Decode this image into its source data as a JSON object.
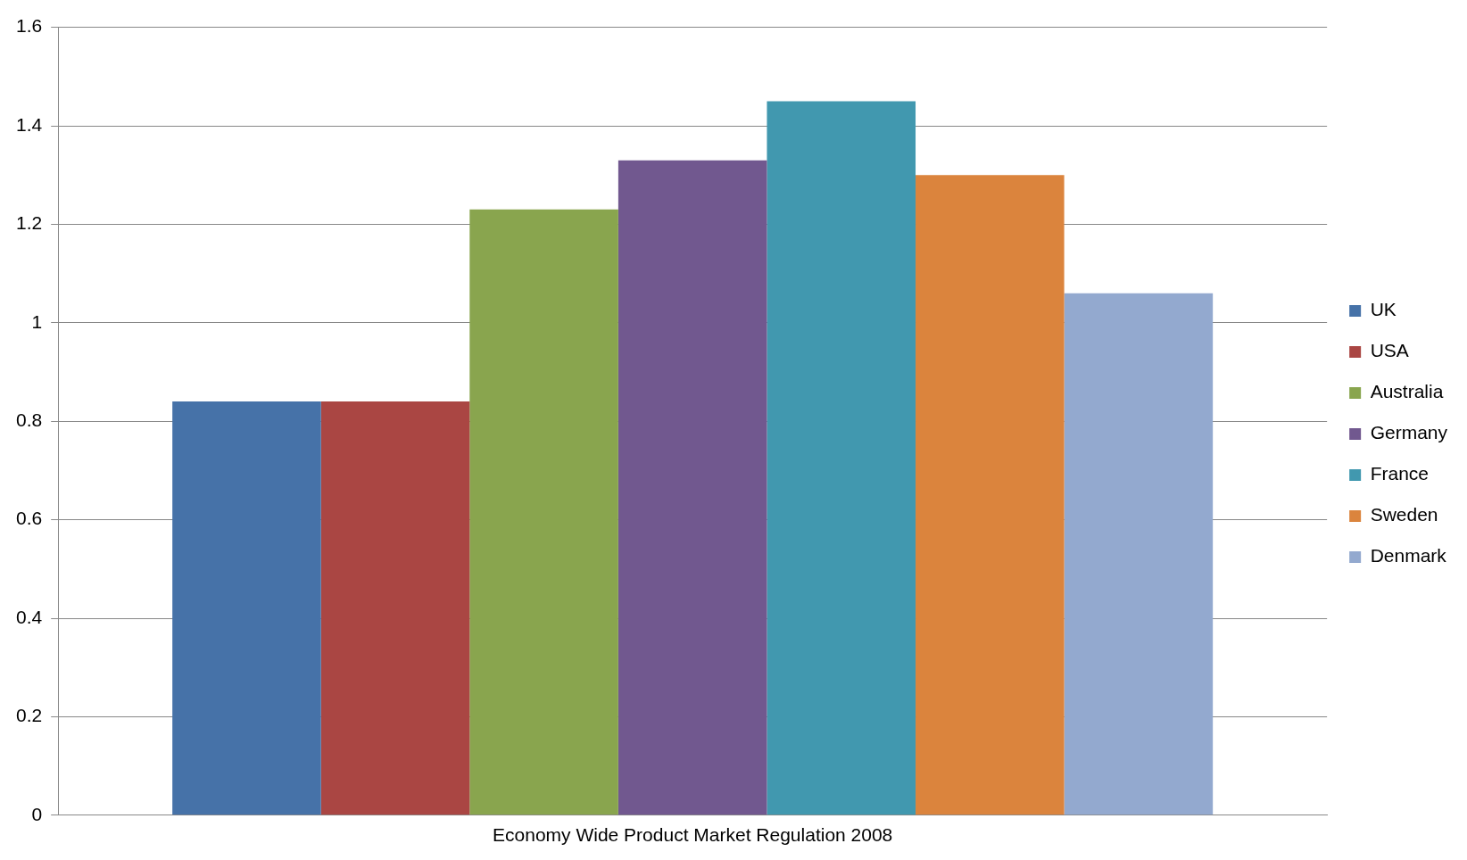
{
  "chart_data": {
    "type": "bar",
    "categories": [
      "Economy Wide Product Market Regulation 2008"
    ],
    "series": [
      {
        "name": "UK",
        "color": "#4672a8",
        "values": [
          0.84
        ]
      },
      {
        "name": "USA",
        "color": "#aa4643",
        "values": [
          0.84
        ]
      },
      {
        "name": "Australia",
        "color": "#89a54e",
        "values": [
          1.23
        ]
      },
      {
        "name": "Germany",
        "color": "#71588f",
        "values": [
          1.33
        ]
      },
      {
        "name": "France",
        "color": "#4198af",
        "values": [
          1.45
        ]
      },
      {
        "name": "Sweden",
        "color": "#db843d",
        "values": [
          1.3
        ]
      },
      {
        "name": "Denmark",
        "color": "#93a9cf",
        "values": [
          1.06
        ]
      }
    ],
    "ylim": [
      0,
      1.6
    ],
    "yticks": [
      0,
      0.2,
      0.4,
      0.6,
      0.8,
      1,
      1.2,
      1.4,
      1.6
    ],
    "grid": "y",
    "legend": "right"
  }
}
